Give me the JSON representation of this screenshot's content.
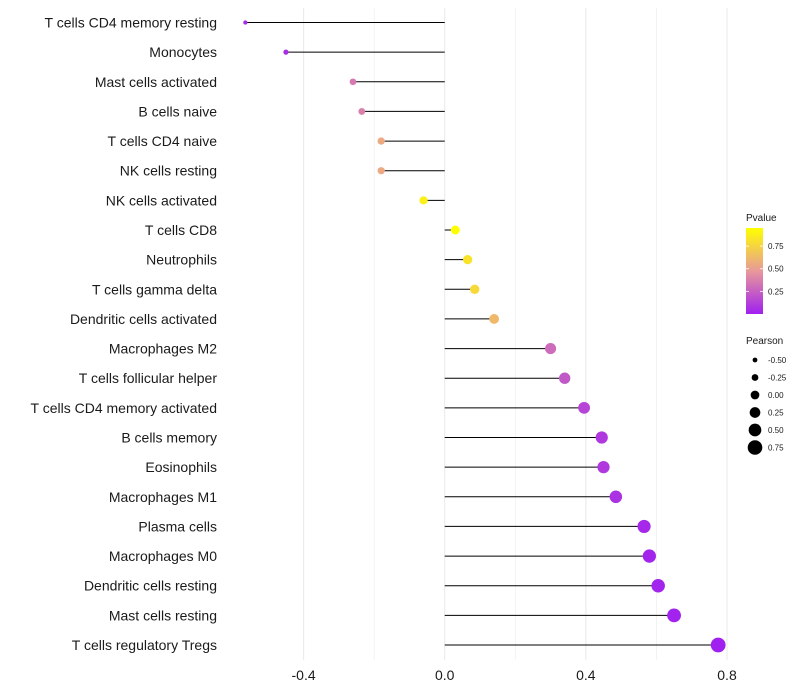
{
  "chart_data": {
    "type": "lollipop",
    "title": "",
    "xlabel": "",
    "ylabel": "",
    "xlim": [
      -0.6,
      0.8
    ],
    "x_ticks": [
      -0.4,
      0.0,
      0.4,
      0.8
    ],
    "x_tick_labels": [
      "-0.4",
      "0.0",
      "0.4",
      "0.8"
    ],
    "grid": true,
    "categories": [
      "T cells CD4 memory resting",
      "Monocytes",
      "Mast cells activated",
      "B cells naive",
      "T cells CD4 naive",
      "NK cells resting",
      "NK cells activated",
      "T cells CD8",
      "Neutrophils",
      "T cells gamma delta",
      "Dendritic cells activated",
      "Macrophages M2",
      "T cells follicular helper",
      "T cells CD4 memory activated",
      "B cells memory",
      "Eosinophils",
      "Macrophages M1",
      "Plasma cells",
      "Macrophages M0",
      "Dendritic cells resting",
      "Mast cells resting",
      "T cells regulatory  Tregs"
    ],
    "pearson": [
      -0.565,
      -0.45,
      -0.26,
      -0.235,
      -0.18,
      -0.18,
      -0.06,
      0.03,
      0.065,
      0.085,
      0.14,
      0.3,
      0.34,
      0.395,
      0.445,
      0.45,
      0.485,
      0.565,
      0.58,
      0.605,
      0.65,
      0.775
    ],
    "pvalue": [
      0.05,
      0.06,
      0.35,
      0.38,
      0.55,
      0.55,
      0.88,
      0.97,
      0.82,
      0.78,
      0.62,
      0.3,
      0.22,
      0.14,
      0.1,
      0.1,
      0.07,
      0.03,
      0.02,
      0.015,
      0.01,
      0.001
    ],
    "legend_color": {
      "title": "Pvalue",
      "ticks": [
        0.25,
        0.5,
        0.75
      ],
      "tick_labels": [
        "0.25",
        "0.50",
        "0.75"
      ],
      "range": [
        0.0,
        0.95
      ],
      "placement": "right"
    },
    "legend_size": {
      "title": "Pearson",
      "values": [
        -0.5,
        -0.25,
        0.0,
        0.25,
        0.5,
        0.75
      ],
      "labels": [
        "-0.50",
        "-0.25",
        "0.00",
        "0.25",
        "0.50",
        "0.75"
      ],
      "placement": "right"
    }
  },
  "colors": {
    "low": "#a020f0",
    "mid": "#e8999a",
    "high": "#ffff00",
    "segment": "#000000",
    "grid": "#ebebeb"
  }
}
